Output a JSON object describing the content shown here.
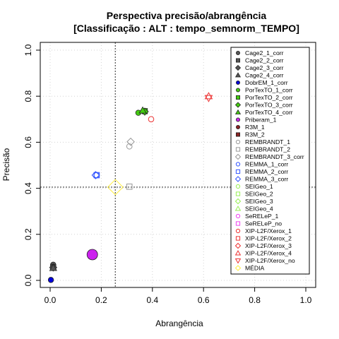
{
  "chart_data": {
    "type": "scatter",
    "title_line1": "Perspectiva precisão/abrangência",
    "title_line2": "[Classificação : ALT : tempo_semnorm_TEMPO]",
    "xlabel": "Abrangência",
    "ylabel": "Precisão",
    "xlim": [
      0,
      1
    ],
    "ylim": [
      0,
      1
    ],
    "x_ticks": [
      {
        "value": 0.0,
        "label": "0.0"
      },
      {
        "value": 0.2,
        "label": "0.2"
      },
      {
        "value": 0.4,
        "label": "0.4"
      },
      {
        "value": 0.6,
        "label": "0.6"
      },
      {
        "value": 0.8,
        "label": "0.8"
      },
      {
        "value": 1.0,
        "label": "1.0"
      }
    ],
    "y_ticks": [
      {
        "value": 0.0,
        "label": "0.0"
      },
      {
        "value": 0.2,
        "label": "0.2"
      },
      {
        "value": 0.4,
        "label": "0.4"
      },
      {
        "value": 0.6,
        "label": "0.6"
      },
      {
        "value": 0.8,
        "label": "0.8"
      },
      {
        "value": 1.0,
        "label": "1.0"
      }
    ],
    "grid": true,
    "mean_lines": {
      "x": 0.255,
      "y": 0.405
    },
    "legend_position": "right",
    "series": [
      {
        "name": "Cage2_1_corr",
        "color": "#555555",
        "shape": "circle",
        "filled": true,
        "x": 0.012,
        "y": 0.068
      },
      {
        "name": "Cage2_2_corr",
        "color": "#555555",
        "shape": "square",
        "filled": true,
        "x": 0.012,
        "y": 0.058
      },
      {
        "name": "Cage2_3_corr",
        "color": "#555555",
        "shape": "diamond",
        "filled": true,
        "x": 0.012,
        "y": 0.056
      },
      {
        "name": "Cage2_4_corr",
        "color": "#555555",
        "shape": "triangle",
        "filled": true,
        "x": 0.012,
        "y": 0.054
      },
      {
        "name": "DobrEM_1_corr",
        "color": "#0000dd",
        "shape": "circle",
        "filled": true,
        "x": 0.003,
        "y": 0.002
      },
      {
        "name": "PorTexTO_1_corr",
        "color": "#44cc11",
        "shape": "circle",
        "filled": true,
        "x": 0.345,
        "y": 0.728
      },
      {
        "name": "PorTexTO_2_corr",
        "color": "#44cc11",
        "shape": "square",
        "filled": true,
        "x": 0.37,
        "y": 0.735
      },
      {
        "name": "PorTexTO_3_corr",
        "color": "#44cc11",
        "shape": "diamond",
        "filled": true,
        "x": 0.37,
        "y": 0.733
      },
      {
        "name": "PorTexTO_4_corr",
        "color": "#44cc11",
        "shape": "triangle",
        "filled": true,
        "x": 0.362,
        "y": 0.738
      },
      {
        "name": "Priberam_1",
        "color": "#cc22ee",
        "shape": "circle",
        "filled": true,
        "x": 0.165,
        "y": 0.112
      },
      {
        "name": "R3M_1",
        "color": "#882222",
        "shape": "circle",
        "filled": true,
        "x": null,
        "y": null
      },
      {
        "name": "R3M_2",
        "color": "#882222",
        "shape": "square",
        "filled": true,
        "x": null,
        "y": null
      },
      {
        "name": "REMBRANDT_1",
        "color": "#999999",
        "shape": "circle",
        "filled": false,
        "x": 0.31,
        "y": 0.582
      },
      {
        "name": "REMBRANDT_2",
        "color": "#999999",
        "shape": "square",
        "filled": false,
        "x": 0.31,
        "y": 0.407
      },
      {
        "name": "REMBRANDT_3_corr",
        "color": "#999999",
        "shape": "diamond",
        "filled": false,
        "x": 0.315,
        "y": 0.602
      },
      {
        "name": "REMMA_1_corr",
        "color": "#3355ff",
        "shape": "circle",
        "filled": false,
        "x": 0.182,
        "y": 0.457
      },
      {
        "name": "REMMA_2_corr",
        "color": "#3355ff",
        "shape": "square",
        "filled": false,
        "x": 0.182,
        "y": 0.457
      },
      {
        "name": "REMMA_3_corr",
        "color": "#3355ff",
        "shape": "diamond",
        "filled": false,
        "x": 0.178,
        "y": 0.457
      },
      {
        "name": "SEIGeo_1",
        "color": "#99ee55",
        "shape": "circle",
        "filled": false,
        "x": null,
        "y": null
      },
      {
        "name": "SEIGeo_2",
        "color": "#99ee55",
        "shape": "square",
        "filled": false,
        "x": null,
        "y": null
      },
      {
        "name": "SEIGeo_3",
        "color": "#99ee55",
        "shape": "diamond",
        "filled": false,
        "x": null,
        "y": null
      },
      {
        "name": "SEIGeo_4",
        "color": "#99ee55",
        "shape": "triangle",
        "filled": false,
        "x": null,
        "y": null
      },
      {
        "name": "SeRELeP_1",
        "color": "#ee44ee",
        "shape": "circle",
        "filled": false,
        "x": null,
        "y": null
      },
      {
        "name": "SeRELeP_no",
        "color": "#ee44ee",
        "shape": "square",
        "filled": false,
        "x": null,
        "y": null
      },
      {
        "name": "XIP-L2F/Xerox_1",
        "color": "#ee3333",
        "shape": "circle",
        "filled": false,
        "x": 0.395,
        "y": 0.7
      },
      {
        "name": "XIP-L2F/Xerox_2",
        "color": "#ee3333",
        "shape": "square",
        "filled": false,
        "x": null,
        "y": null
      },
      {
        "name": "XIP-L2F/Xerox_3",
        "color": "#ee3333",
        "shape": "diamond",
        "filled": false,
        "x": null,
        "y": null
      },
      {
        "name": "XIP-L2F/Xerox_4",
        "color": "#ee3333",
        "shape": "triangle",
        "filled": false,
        "x": 0.62,
        "y": 0.8
      },
      {
        "name": "XIP-L2F/Xerox_no",
        "color": "#ee3333",
        "shape": "triangle-down",
        "filled": false,
        "x": 0.62,
        "y": 0.792
      },
      {
        "name": "MÉDIA",
        "color": "#ffee44",
        "shape": "diamond",
        "filled": false,
        "x": 0.255,
        "y": 0.405
      }
    ]
  }
}
